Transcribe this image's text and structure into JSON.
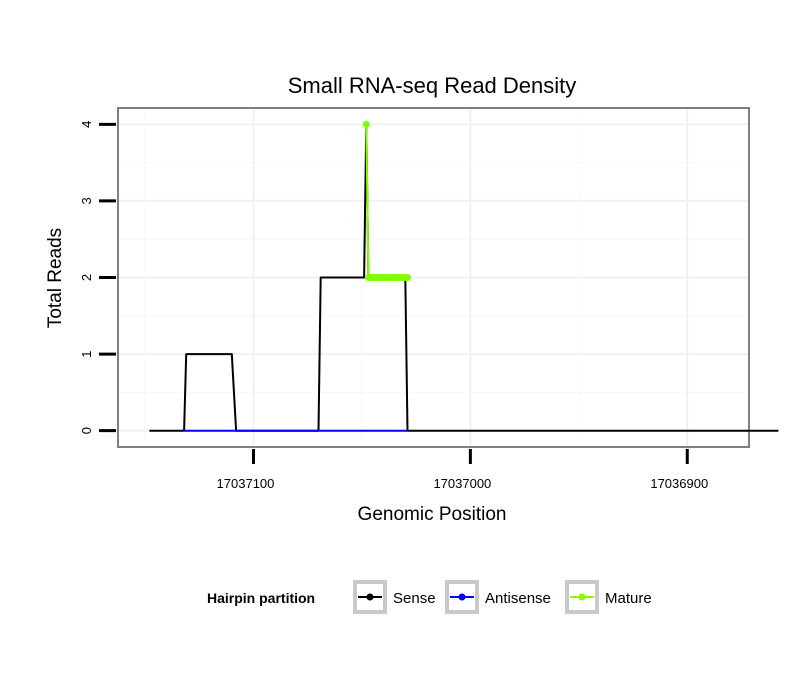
{
  "chart_data": {
    "type": "line",
    "title": "Small RNA-seq Read Density",
    "xlabel": "Genomic Position",
    "ylabel": "Total Reads",
    "x_reversed": true,
    "xlim": [
      17037162,
      17036872
    ],
    "ylim": [
      -0.2,
      4.2
    ],
    "x_ticks": [
      17037100,
      17037000,
      17036900
    ],
    "x_tick_labels": [
      "17037100",
      "17037000",
      "17036900"
    ],
    "y_ticks": [
      0,
      1,
      2,
      3,
      4
    ],
    "y_tick_labels": [
      "0",
      "1",
      "2",
      "3",
      "4"
    ],
    "grid": true,
    "legend": {
      "title": "Hairpin partition",
      "position": "bottom",
      "entries": [
        {
          "name": "Sense",
          "color": "#000000"
        },
        {
          "name": "Antisense",
          "color": "#0000ff"
        },
        {
          "name": "Mature",
          "color": "#7fff00"
        }
      ]
    },
    "series": [
      {
        "name": "Sense",
        "color": "#000000",
        "marker": false,
        "points": [
          [
            17037148,
            0
          ],
          [
            17037132,
            0
          ],
          [
            17037131,
            1
          ],
          [
            17037110,
            1
          ],
          [
            17037108,
            0
          ],
          [
            17037070,
            0
          ],
          [
            17037069,
            2
          ],
          [
            17037049,
            2
          ],
          [
            17037048,
            4
          ],
          [
            17037047,
            2
          ],
          [
            17037030,
            2
          ],
          [
            17037029,
            0
          ],
          [
            17036858,
            0
          ]
        ]
      },
      {
        "name": "Antisense",
        "color": "#0000ff",
        "marker": false,
        "points": [
          [
            17037132,
            0
          ],
          [
            17037108,
            0
          ],
          [
            17037070,
            0
          ],
          [
            17037029,
            0
          ]
        ]
      },
      {
        "name": "Mature",
        "color": "#7fff00",
        "marker": true,
        "points": [
          [
            17037048,
            4
          ],
          [
            17037047,
            2
          ],
          [
            17037046,
            2
          ],
          [
            17037045,
            2
          ],
          [
            17037044,
            2
          ],
          [
            17037043,
            2
          ],
          [
            17037042,
            2
          ],
          [
            17037041,
            2
          ],
          [
            17037040,
            2
          ],
          [
            17037039,
            2
          ],
          [
            17037038,
            2
          ],
          [
            17037037,
            2
          ],
          [
            17037036,
            2
          ],
          [
            17037035,
            2
          ],
          [
            17037034,
            2
          ],
          [
            17037033,
            2
          ],
          [
            17037032,
            2
          ],
          [
            17037031,
            2
          ],
          [
            17037030,
            2
          ],
          [
            17037029,
            2
          ]
        ]
      }
    ]
  }
}
